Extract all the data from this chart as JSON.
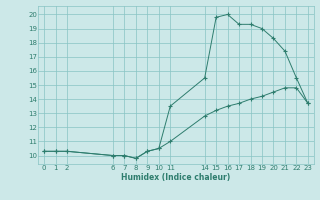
{
  "line1_x": [
    0,
    1,
    2,
    6,
    7,
    8,
    9,
    10,
    11,
    14,
    15,
    16,
    17,
    18,
    19,
    20,
    21,
    22,
    23
  ],
  "line1_y": [
    10.3,
    10.3,
    10.3,
    10.0,
    10.0,
    9.8,
    10.3,
    10.5,
    13.5,
    15.5,
    19.8,
    20.0,
    19.3,
    19.3,
    19.0,
    18.3,
    17.4,
    15.5,
    13.7
  ],
  "line2_x": [
    0,
    1,
    2,
    6,
    7,
    8,
    9,
    10,
    11,
    14,
    15,
    16,
    17,
    18,
    19,
    20,
    21,
    22,
    23
  ],
  "line2_y": [
    10.3,
    10.3,
    10.3,
    10.0,
    10.0,
    9.8,
    10.3,
    10.5,
    11.0,
    12.8,
    13.2,
    13.5,
    13.7,
    14.0,
    14.2,
    14.5,
    14.8,
    14.8,
    13.7
  ],
  "line_color": "#2e7d6e",
  "bg_color": "#cce8e8",
  "grid_color": "#88c4c4",
  "xlabel": "Humidex (Indice chaleur)",
  "xticks": [
    0,
    1,
    2,
    6,
    7,
    8,
    9,
    10,
    11,
    14,
    15,
    16,
    17,
    18,
    19,
    20,
    21,
    22,
    23
  ],
  "yticks": [
    10,
    11,
    12,
    13,
    14,
    15,
    16,
    17,
    18,
    19,
    20
  ],
  "xlim": [
    -0.5,
    23.5
  ],
  "ylim": [
    9.4,
    20.6
  ]
}
